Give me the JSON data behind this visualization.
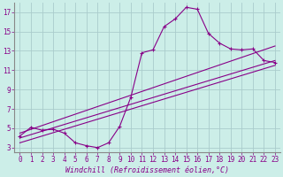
{
  "xlabel": "Windchill (Refroidissement éolien,°C)",
  "background_color": "#cceee8",
  "grid_color": "#aacccc",
  "line_color": "#880088",
  "xlim": [
    -0.5,
    23.5
  ],
  "ylim": [
    2.5,
    18
  ],
  "xticks": [
    0,
    1,
    2,
    3,
    4,
    5,
    6,
    7,
    8,
    9,
    10,
    11,
    12,
    13,
    14,
    15,
    16,
    17,
    18,
    19,
    20,
    21,
    22,
    23
  ],
  "yticks": [
    3,
    5,
    7,
    9,
    11,
    13,
    15,
    17
  ],
  "series1_x": [
    0,
    1,
    2,
    3,
    4,
    5,
    6,
    7,
    8,
    9,
    10,
    11,
    12,
    13,
    14,
    15,
    16,
    17,
    18,
    19,
    20,
    21,
    22,
    23
  ],
  "series1_y": [
    4.2,
    5.1,
    4.8,
    4.9,
    4.5,
    3.5,
    3.2,
    3.0,
    3.5,
    5.2,
    8.2,
    12.8,
    13.1,
    15.5,
    16.3,
    17.5,
    17.3,
    14.8,
    13.8,
    13.2,
    13.1,
    13.2,
    12.0,
    11.8
  ],
  "series2_x": [
    0,
    23
  ],
  "series2_y": [
    4.5,
    13.5
  ],
  "series3_x": [
    0,
    23
  ],
  "series3_y": [
    4.0,
    12.0
  ],
  "series4_x": [
    0,
    23
  ],
  "series4_y": [
    3.5,
    11.5
  ],
  "tick_fontsize": 5.5,
  "xlabel_fontsize": 6.0
}
